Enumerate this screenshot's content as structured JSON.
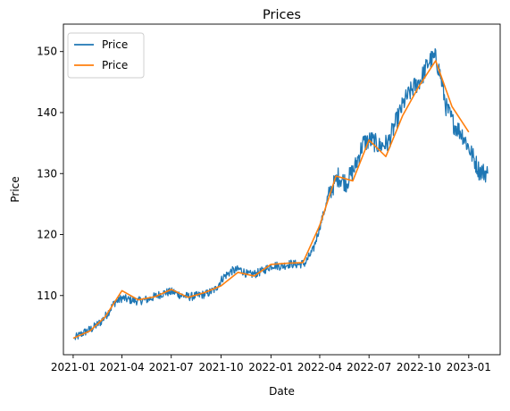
{
  "chart_data": {
    "type": "line",
    "title": "Prices",
    "xlabel": "Date",
    "ylabel": "Price",
    "xlim": [
      "2020-12-14",
      "2023-02-28"
    ],
    "ylim": [
      100.3,
      154.5
    ],
    "x_ticks": [
      "2021-01",
      "2021-04",
      "2021-07",
      "2021-10",
      "2022-01",
      "2022-04",
      "2022-07",
      "2022-10",
      "2023-01"
    ],
    "y_ticks": [
      110,
      120,
      130,
      140,
      150
    ],
    "grid": false,
    "legend": {
      "placement": "top-left",
      "entries": [
        "Price",
        "Price"
      ]
    },
    "series": [
      {
        "name": "Price",
        "color": "#1f77b4",
        "style": "daily",
        "points": [
          [
            "2021-01-04",
            103.0
          ],
          [
            "2021-01-20",
            103.9
          ],
          [
            "2021-02-05",
            104.6
          ],
          [
            "2021-02-20",
            105.6
          ],
          [
            "2021-03-05",
            107.0
          ],
          [
            "2021-03-18",
            108.8
          ],
          [
            "2021-04-01",
            109.6
          ],
          [
            "2021-04-15",
            109.3
          ],
          [
            "2021-05-01",
            109.1
          ],
          [
            "2021-05-20",
            109.4
          ],
          [
            "2021-06-05",
            110.0
          ],
          [
            "2021-06-20",
            110.5
          ],
          [
            "2021-07-05",
            110.6
          ],
          [
            "2021-07-20",
            110.0
          ],
          [
            "2021-08-05",
            109.8
          ],
          [
            "2021-08-20",
            110.0
          ],
          [
            "2021-09-05",
            110.3
          ],
          [
            "2021-09-20",
            111.0
          ],
          [
            "2021-10-05",
            113.0
          ],
          [
            "2021-10-20",
            114.0
          ],
          [
            "2021-11-05",
            114.3
          ],
          [
            "2021-11-20",
            113.4
          ],
          [
            "2021-12-05",
            113.6
          ],
          [
            "2021-12-20",
            114.2
          ],
          [
            "2022-01-05",
            115.0
          ],
          [
            "2022-01-20",
            114.8
          ],
          [
            "2022-02-05",
            115.2
          ],
          [
            "2022-02-20",
            115.1
          ],
          [
            "2022-03-05",
            115.3
          ],
          [
            "2022-03-20",
            117.5
          ],
          [
            "2022-04-05",
            122.5
          ],
          [
            "2022-04-20",
            127.0
          ],
          [
            "2022-05-05",
            129.5
          ],
          [
            "2022-05-20",
            128.5
          ],
          [
            "2022-06-05",
            131.0
          ],
          [
            "2022-06-20",
            135.0
          ],
          [
            "2022-07-05",
            135.5
          ],
          [
            "2022-07-20",
            134.5
          ],
          [
            "2022-08-05",
            135.0
          ],
          [
            "2022-08-20",
            138.5
          ],
          [
            "2022-09-05",
            142.0
          ],
          [
            "2022-09-20",
            144.0
          ],
          [
            "2022-10-05",
            145.5
          ],
          [
            "2022-10-20",
            148.5
          ],
          [
            "2022-11-01",
            149.0
          ],
          [
            "2022-11-10",
            146.0
          ],
          [
            "2022-11-20",
            141.0
          ],
          [
            "2022-12-05",
            138.0
          ],
          [
            "2022-12-20",
            136.5
          ],
          [
            "2023-01-05",
            133.5
          ],
          [
            "2023-01-20",
            130.5
          ],
          [
            "2023-02-05",
            130.0
          ]
        ]
      },
      {
        "name": "Price",
        "color": "#ff7f0e",
        "style": "monthly",
        "points": [
          [
            "2021-01-01",
            103.0
          ],
          [
            "2021-02-01",
            104.2
          ],
          [
            "2021-03-01",
            106.5
          ],
          [
            "2021-04-01",
            110.8
          ],
          [
            "2021-05-01",
            109.3
          ],
          [
            "2021-06-01",
            109.8
          ],
          [
            "2021-07-01",
            111.0
          ],
          [
            "2021-08-01",
            109.7
          ],
          [
            "2021-09-01",
            110.5
          ],
          [
            "2021-10-01",
            111.6
          ],
          [
            "2021-11-01",
            113.8
          ],
          [
            "2021-12-01",
            113.2
          ],
          [
            "2022-01-01",
            115.1
          ],
          [
            "2022-02-01",
            115.3
          ],
          [
            "2022-03-01",
            115.4
          ],
          [
            "2022-04-01",
            121.5
          ],
          [
            "2022-05-01",
            129.6
          ],
          [
            "2022-06-01",
            128.8
          ],
          [
            "2022-07-01",
            135.5
          ],
          [
            "2022-08-01",
            132.8
          ],
          [
            "2022-09-01",
            139.5
          ],
          [
            "2022-10-01",
            144.3
          ],
          [
            "2022-11-01",
            148.5
          ],
          [
            "2022-12-01",
            141.0
          ],
          [
            "2023-01-01",
            136.8
          ]
        ]
      }
    ]
  }
}
